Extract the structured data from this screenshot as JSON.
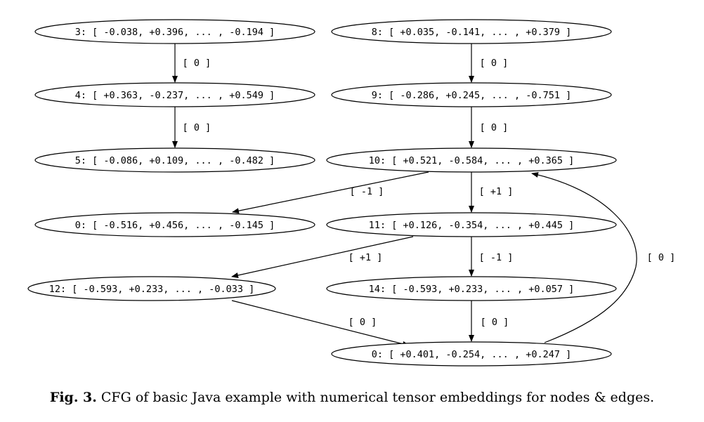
{
  "diagram": {
    "nodes": [
      {
        "id": "n3",
        "label": "3: [ -0.038, +0.396, ... , -0.194 ]"
      },
      {
        "id": "n4",
        "label": "4: [ +0.363, -0.237, ... , +0.549 ]"
      },
      {
        "id": "n5",
        "label": "5: [ -0.086, +0.109, ... , -0.482 ]"
      },
      {
        "id": "n0a",
        "label": "0: [ -0.516, +0.456, ... , -0.145 ]"
      },
      {
        "id": "n12",
        "label": "12: [ -0.593, +0.233, ... , -0.033 ]"
      },
      {
        "id": "n8",
        "label": "8: [ +0.035, -0.141, ... , +0.379 ]"
      },
      {
        "id": "n9",
        "label": "9: [ -0.286, +0.245, ... , -0.751 ]"
      },
      {
        "id": "n10",
        "label": "10: [ +0.521, -0.584, ... , +0.365 ]"
      },
      {
        "id": "n11",
        "label": "11: [ +0.126, -0.354, ... , +0.445 ]"
      },
      {
        "id": "n14",
        "label": "14: [ -0.593, +0.233, ... , +0.057 ]"
      },
      {
        "id": "n0b",
        "label": "0: [ +0.401, -0.254, ... , +0.247 ]"
      }
    ],
    "edges": [
      {
        "from": "n3",
        "to": "n4",
        "label": "[ 0 ]"
      },
      {
        "from": "n4",
        "to": "n5",
        "label": "[ 0 ]"
      },
      {
        "from": "n8",
        "to": "n9",
        "label": "[ 0 ]"
      },
      {
        "from": "n9",
        "to": "n10",
        "label": "[ 0 ]"
      },
      {
        "from": "n10",
        "to": "n0a",
        "label": "[ -1 ]"
      },
      {
        "from": "n10",
        "to": "n11",
        "label": "[ +1 ]"
      },
      {
        "from": "n11",
        "to": "n12",
        "label": "[ +1 ]"
      },
      {
        "from": "n11",
        "to": "n14",
        "label": "[ -1 ]"
      },
      {
        "from": "n12",
        "to": "n0b",
        "label": "[ 0 ]"
      },
      {
        "from": "n14",
        "to": "n0b",
        "label": "[ 0 ]"
      },
      {
        "from": "n0b",
        "to": "n10",
        "label": "[ 0 ]"
      }
    ]
  },
  "caption": {
    "label": "Fig. 3.",
    "text": "CFG of basic Java example with numerical tensor embeddings for nodes & edges."
  }
}
